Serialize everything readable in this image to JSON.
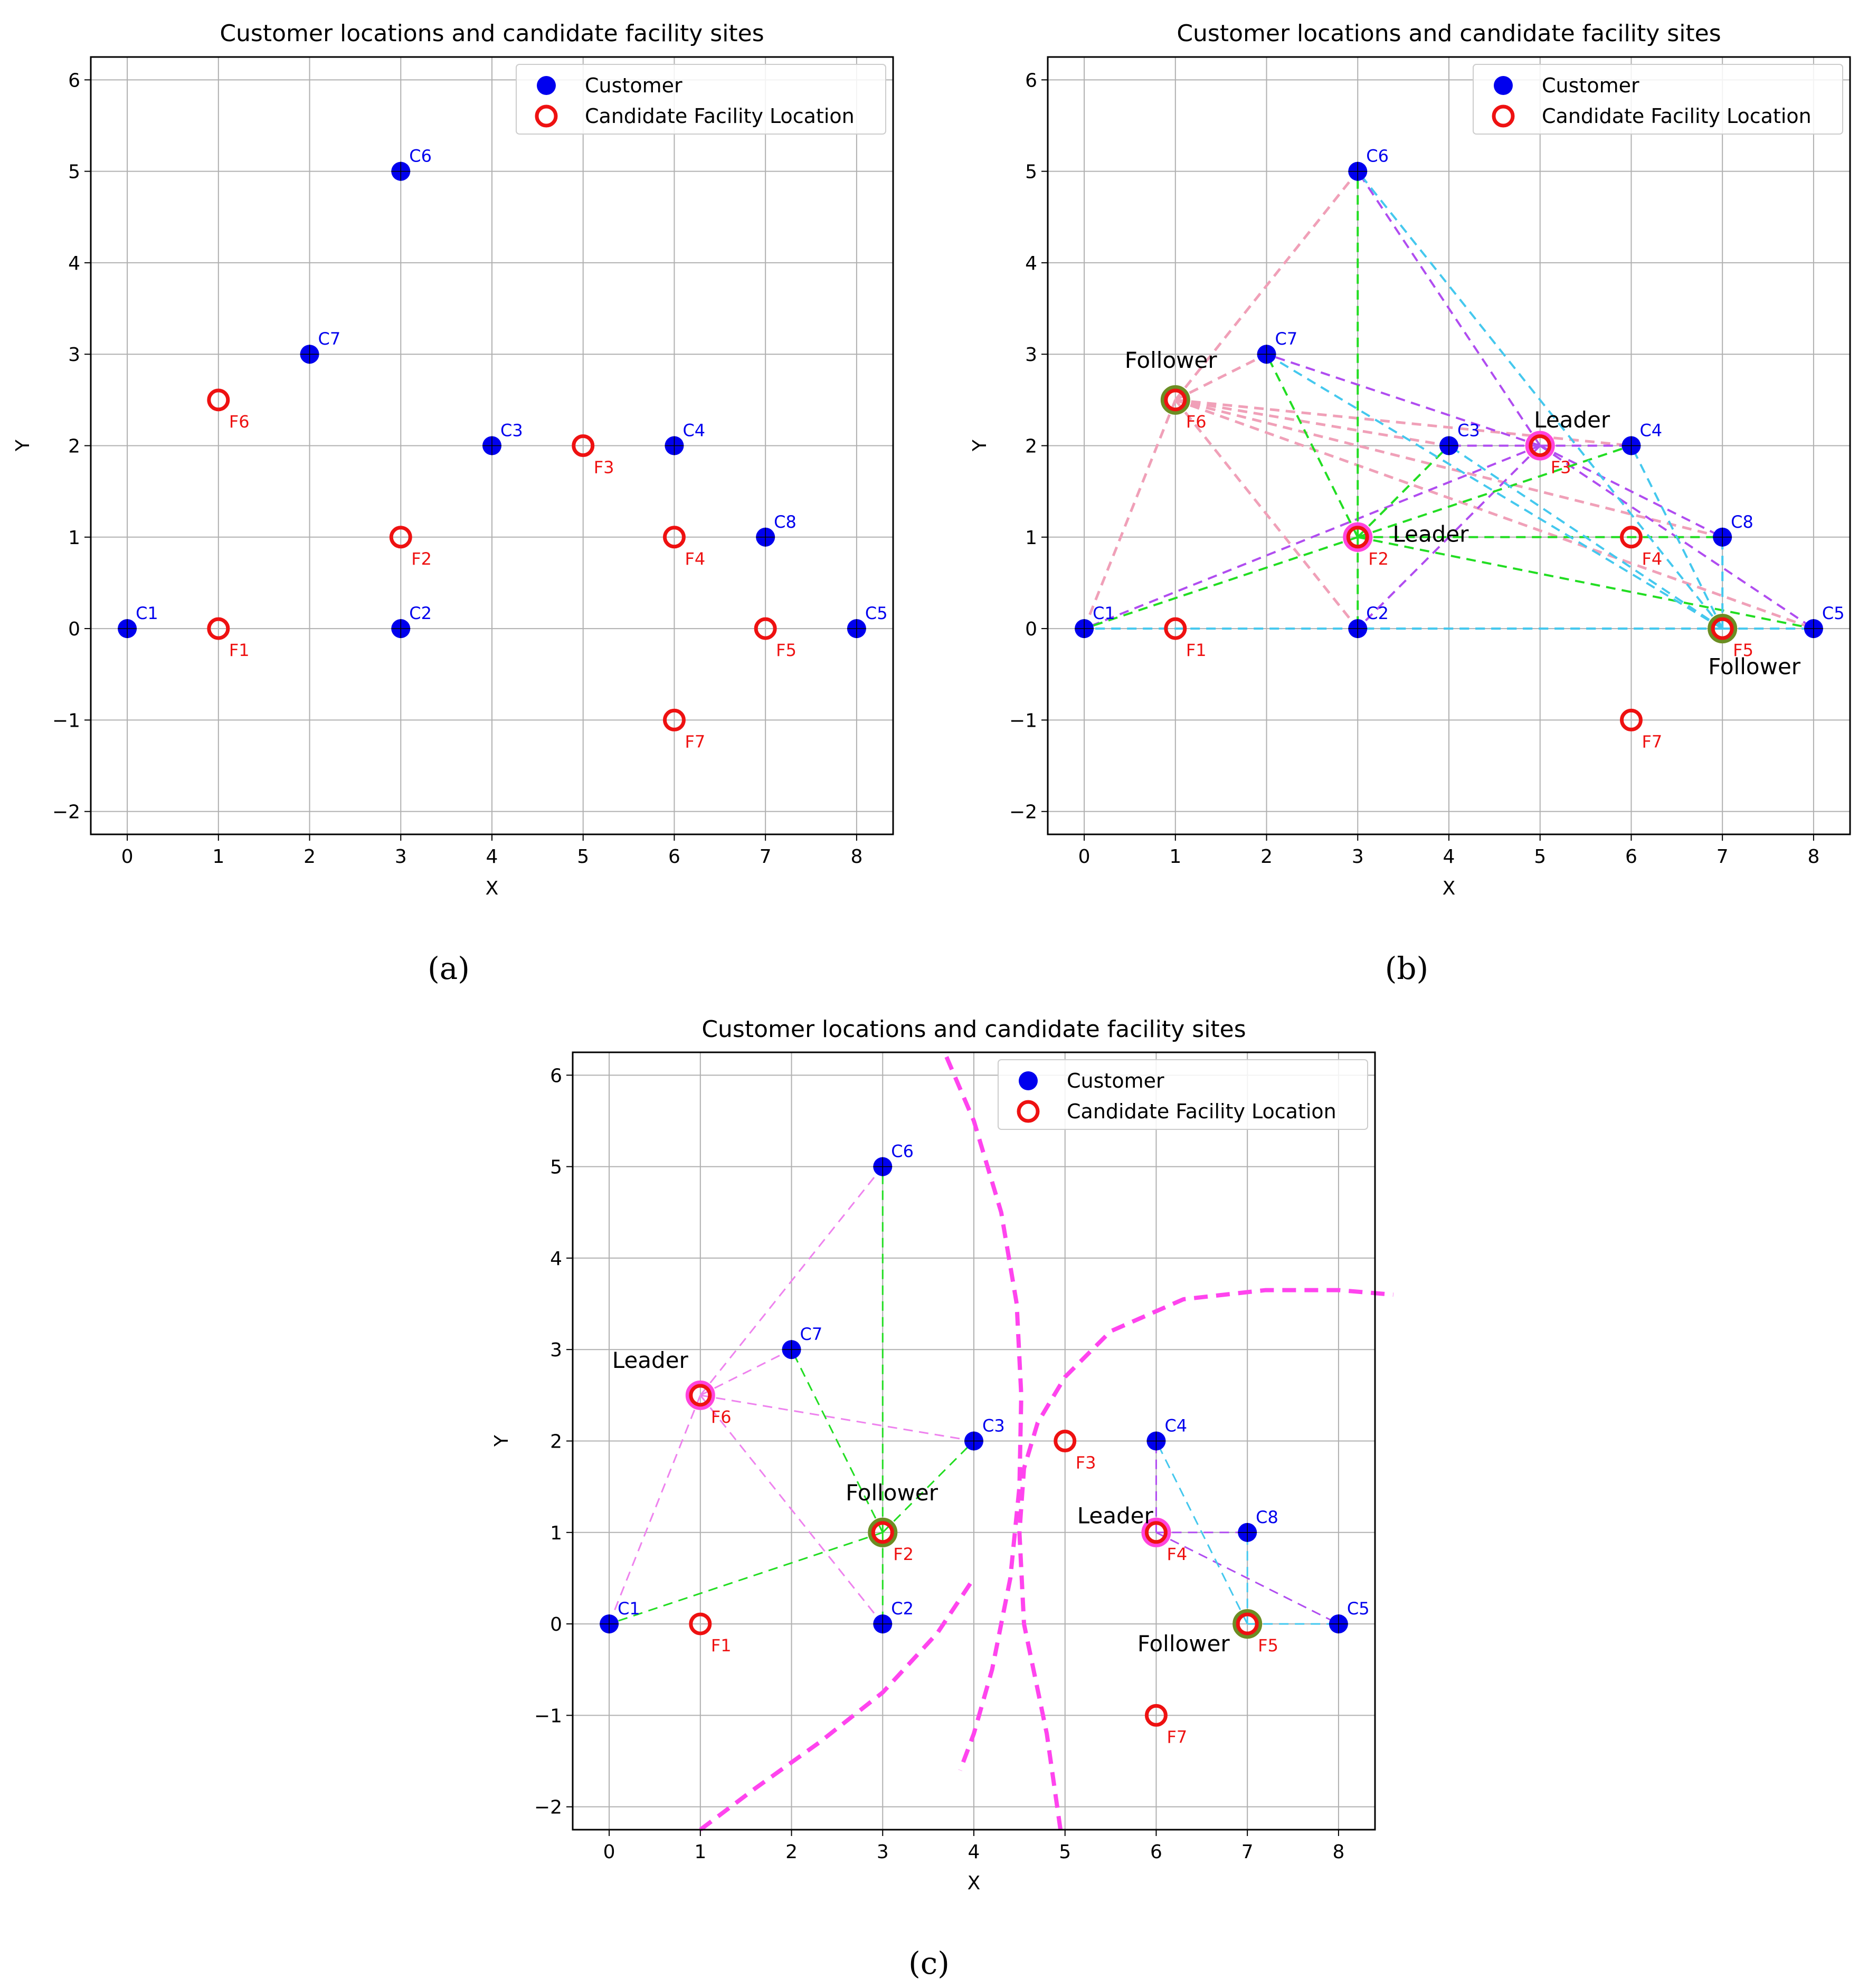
{
  "chart_data": [
    {
      "panel": "a",
      "caption": "(a)",
      "type": "scatter",
      "title": "Customer locations and candidate facility sites",
      "xlabel": "X",
      "ylabel": "Y",
      "xlim": [
        -0.4,
        8.4
      ],
      "ylim": [
        -2.25,
        6.25
      ],
      "xticks": [
        0,
        1,
        2,
        3,
        4,
        5,
        6,
        7,
        8
      ],
      "yticks": [
        -2,
        -1,
        0,
        1,
        2,
        3,
        4,
        5,
        6
      ],
      "grid": true,
      "legend": {
        "position": "top-right",
        "entries": [
          "Customer",
          "Candidate Facility Location"
        ]
      },
      "customers": [
        {
          "id": "C1",
          "x": 0,
          "y": 0
        },
        {
          "id": "C2",
          "x": 3,
          "y": 0
        },
        {
          "id": "C3",
          "x": 4,
          "y": 2
        },
        {
          "id": "C4",
          "x": 6,
          "y": 2
        },
        {
          "id": "C5",
          "x": 8,
          "y": 0
        },
        {
          "id": "C6",
          "x": 3,
          "y": 5
        },
        {
          "id": "C7",
          "x": 2,
          "y": 3
        },
        {
          "id": "C8",
          "x": 7,
          "y": 1
        }
      ],
      "facilities": [
        {
          "id": "F1",
          "x": 1,
          "y": 0
        },
        {
          "id": "F2",
          "x": 3,
          "y": 1
        },
        {
          "id": "F3",
          "x": 5,
          "y": 2
        },
        {
          "id": "F4",
          "x": 6,
          "y": 1
        },
        {
          "id": "F5",
          "x": 7,
          "y": 0
        },
        {
          "id": "F6",
          "x": 1,
          "y": 2.5
        },
        {
          "id": "F7",
          "x": 6,
          "y": -1
        }
      ],
      "connections": [],
      "roles": [],
      "boundaries": []
    },
    {
      "panel": "b",
      "caption": "(b)",
      "type": "scatter",
      "title": "Customer locations and candidate facility sites",
      "xlabel": "X",
      "ylabel": "Y",
      "xlim": [
        -0.4,
        8.4
      ],
      "ylim": [
        -2.25,
        6.25
      ],
      "xticks": [
        0,
        1,
        2,
        3,
        4,
        5,
        6,
        7,
        8
      ],
      "yticks": [
        -2,
        -1,
        0,
        1,
        2,
        3,
        4,
        5,
        6
      ],
      "grid": true,
      "legend": {
        "position": "top-right",
        "entries": [
          "Customer",
          "Candidate Facility Location"
        ]
      },
      "customers": [
        {
          "id": "C1",
          "x": 0,
          "y": 0
        },
        {
          "id": "C2",
          "x": 3,
          "y": 0
        },
        {
          "id": "C3",
          "x": 4,
          "y": 2
        },
        {
          "id": "C4",
          "x": 6,
          "y": 2
        },
        {
          "id": "C5",
          "x": 8,
          "y": 0
        },
        {
          "id": "C6",
          "x": 3,
          "y": 5
        },
        {
          "id": "C7",
          "x": 2,
          "y": 3
        },
        {
          "id": "C8",
          "x": 7,
          "y": 1
        }
      ],
      "facilities": [
        {
          "id": "F1",
          "x": 1,
          "y": 0
        },
        {
          "id": "F2",
          "x": 3,
          "y": 1
        },
        {
          "id": "F3",
          "x": 5,
          "y": 2
        },
        {
          "id": "F4",
          "x": 6,
          "y": 1
        },
        {
          "id": "F5",
          "x": 7,
          "y": 0
        },
        {
          "id": "F6",
          "x": 1,
          "y": 2.5
        },
        {
          "id": "F7",
          "x": 6,
          "y": -1
        }
      ],
      "connections": [
        {
          "color": "#f0a0b8",
          "from": [
            1,
            2.5
          ],
          "to": [
            3,
            5
          ],
          "width": 5
        },
        {
          "color": "#f0a0b8",
          "from": [
            1,
            2.5
          ],
          "to": [
            0,
            0
          ],
          "width": 5
        },
        {
          "color": "#f0a0b8",
          "from": [
            1,
            2.5
          ],
          "to": [
            2,
            3
          ],
          "width": 5
        },
        {
          "color": "#f0a0b8",
          "from": [
            1,
            2.5
          ],
          "to": [
            4,
            2
          ],
          "width": 5
        },
        {
          "color": "#f0a0b8",
          "from": [
            1,
            2.5
          ],
          "to": [
            6,
            2
          ],
          "width": 5
        },
        {
          "color": "#f0a0b8",
          "from": [
            1,
            2.5
          ],
          "to": [
            3,
            0
          ],
          "width": 5
        },
        {
          "color": "#f0a0b8",
          "from": [
            1,
            2.5
          ],
          "to": [
            7,
            1
          ],
          "width": 5
        },
        {
          "color": "#f0a0b8",
          "from": [
            1,
            2.5
          ],
          "to": [
            8,
            0
          ],
          "width": 5
        },
        {
          "color": "#b04cf0",
          "from": [
            5,
            2
          ],
          "to": [
            3,
            5
          ],
          "width": 4
        },
        {
          "color": "#b04cf0",
          "from": [
            5,
            2
          ],
          "to": [
            2,
            3
          ],
          "width": 4
        },
        {
          "color": "#b04cf0",
          "from": [
            5,
            2
          ],
          "to": [
            4,
            2
          ],
          "width": 4
        },
        {
          "color": "#b04cf0",
          "from": [
            5,
            2
          ],
          "to": [
            6,
            2
          ],
          "width": 4
        },
        {
          "color": "#b04cf0",
          "from": [
            5,
            2
          ],
          "to": [
            0,
            0
          ],
          "width": 4
        },
        {
          "color": "#b04cf0",
          "from": [
            5,
            2
          ],
          "to": [
            3,
            0
          ],
          "width": 4
        },
        {
          "color": "#b04cf0",
          "from": [
            5,
            2
          ],
          "to": [
            7,
            1
          ],
          "width": 4
        },
        {
          "color": "#b04cf0",
          "from": [
            5,
            2
          ],
          "to": [
            8,
            0
          ],
          "width": 4
        },
        {
          "color": "#22dd22",
          "from": [
            3,
            1
          ],
          "to": [
            3,
            5
          ],
          "width": 4
        },
        {
          "color": "#22dd22",
          "from": [
            3,
            1
          ],
          "to": [
            2,
            3
          ],
          "width": 4
        },
        {
          "color": "#22dd22",
          "from": [
            3,
            1
          ],
          "to": [
            4,
            2
          ],
          "width": 4
        },
        {
          "color": "#22dd22",
          "from": [
            3,
            1
          ],
          "to": [
            6,
            2
          ],
          "width": 4
        },
        {
          "color": "#22dd22",
          "from": [
            3,
            1
          ],
          "to": [
            0,
            0
          ],
          "width": 4
        },
        {
          "color": "#22dd22",
          "from": [
            3,
            1
          ],
          "to": [
            3,
            0
          ],
          "width": 4
        },
        {
          "color": "#22dd22",
          "from": [
            3,
            1
          ],
          "to": [
            7,
            1
          ],
          "width": 4
        },
        {
          "color": "#22dd22",
          "from": [
            3,
            1
          ],
          "to": [
            8,
            0
          ],
          "width": 4
        },
        {
          "color": "#44c8ee",
          "from": [
            7,
            0
          ],
          "to": [
            3,
            5
          ],
          "width": 4
        },
        {
          "color": "#44c8ee",
          "from": [
            7,
            0
          ],
          "to": [
            2,
            3
          ],
          "width": 4
        },
        {
          "color": "#44c8ee",
          "from": [
            7,
            0
          ],
          "to": [
            4,
            2
          ],
          "width": 4
        },
        {
          "color": "#44c8ee",
          "from": [
            7,
            0
          ],
          "to": [
            6,
            2
          ],
          "width": 4
        },
        {
          "color": "#44c8ee",
          "from": [
            7,
            0
          ],
          "to": [
            0,
            0
          ],
          "width": 4
        },
        {
          "color": "#44c8ee",
          "from": [
            7,
            0
          ],
          "to": [
            3,
            0
          ],
          "width": 4
        },
        {
          "color": "#44c8ee",
          "from": [
            7,
            0
          ],
          "to": [
            7,
            1
          ],
          "width": 4
        },
        {
          "color": "#44c8ee",
          "from": [
            7,
            0
          ],
          "to": [
            8,
            0
          ],
          "width": 4
        }
      ],
      "roles": [
        {
          "text": "Follower",
          "x": 0.95,
          "y": 2.85,
          "at": [
            1,
            2.5
          ],
          "ring": "#6b8e23"
        },
        {
          "text": "Leader",
          "x": 5.35,
          "y": 2.2,
          "at": [
            5,
            2
          ],
          "ring": "#ff44dd"
        },
        {
          "text": "Leader",
          "x": 3.8,
          "y": 0.95,
          "at": [
            3,
            1
          ],
          "ring": "#ff44dd"
        },
        {
          "text": "Follower",
          "x": 7.35,
          "y": -0.5,
          "at": [
            7,
            0
          ],
          "ring": "#6b8e23"
        }
      ],
      "boundaries": []
    },
    {
      "panel": "c",
      "caption": "(c)",
      "type": "scatter",
      "title": "Customer locations and candidate facility sites",
      "xlabel": "X",
      "ylabel": "Y",
      "xlim": [
        -0.4,
        8.4
      ],
      "ylim": [
        -2.25,
        6.25
      ],
      "xticks": [
        0,
        1,
        2,
        3,
        4,
        5,
        6,
        7,
        8
      ],
      "yticks": [
        -2,
        -1,
        0,
        1,
        2,
        3,
        4,
        5,
        6
      ],
      "grid": true,
      "legend": {
        "position": "top-right",
        "entries": [
          "Customer",
          "Candidate Facility Location"
        ]
      },
      "customers": [
        {
          "id": "C1",
          "x": 0,
          "y": 0
        },
        {
          "id": "C2",
          "x": 3,
          "y": 0
        },
        {
          "id": "C3",
          "x": 4,
          "y": 2
        },
        {
          "id": "C4",
          "x": 6,
          "y": 2
        },
        {
          "id": "C5",
          "x": 8,
          "y": 0
        },
        {
          "id": "C6",
          "x": 3,
          "y": 5
        },
        {
          "id": "C7",
          "x": 2,
          "y": 3
        },
        {
          "id": "C8",
          "x": 7,
          "y": 1
        }
      ],
      "facilities": [
        {
          "id": "F1",
          "x": 1,
          "y": 0
        },
        {
          "id": "F2",
          "x": 3,
          "y": 1
        },
        {
          "id": "F3",
          "x": 5,
          "y": 2
        },
        {
          "id": "F4",
          "x": 6,
          "y": 1
        },
        {
          "id": "F5",
          "x": 7,
          "y": 0
        },
        {
          "id": "F6",
          "x": 1,
          "y": 2.5
        },
        {
          "id": "F7",
          "x": 6,
          "y": -1
        }
      ],
      "connections": [
        {
          "color": "#ee82ee",
          "from": [
            1,
            2.5
          ],
          "to": [
            3,
            5
          ],
          "width": 3
        },
        {
          "color": "#ee82ee",
          "from": [
            1,
            2.5
          ],
          "to": [
            2,
            3
          ],
          "width": 3
        },
        {
          "color": "#ee82ee",
          "from": [
            1,
            2.5
          ],
          "to": [
            4,
            2
          ],
          "width": 3
        },
        {
          "color": "#ee82ee",
          "from": [
            1,
            2.5
          ],
          "to": [
            0,
            0
          ],
          "width": 3
        },
        {
          "color": "#ee82ee",
          "from": [
            1,
            2.5
          ],
          "to": [
            3,
            0
          ],
          "width": 3
        },
        {
          "color": "#22dd22",
          "from": [
            3,
            1
          ],
          "to": [
            3,
            5
          ],
          "width": 3
        },
        {
          "color": "#22dd22",
          "from": [
            3,
            1
          ],
          "to": [
            2,
            3
          ],
          "width": 3
        },
        {
          "color": "#22dd22",
          "from": [
            3,
            1
          ],
          "to": [
            4,
            2
          ],
          "width": 3
        },
        {
          "color": "#22dd22",
          "from": [
            3,
            1
          ],
          "to": [
            0,
            0
          ],
          "width": 3
        },
        {
          "color": "#22dd22",
          "from": [
            3,
            1
          ],
          "to": [
            3,
            0
          ],
          "width": 3
        },
        {
          "color": "#b04cf0",
          "from": [
            6,
            1
          ],
          "to": [
            6,
            2
          ],
          "width": 3
        },
        {
          "color": "#b04cf0",
          "from": [
            6,
            1
          ],
          "to": [
            7,
            1
          ],
          "width": 3
        },
        {
          "color": "#b04cf0",
          "from": [
            6,
            1
          ],
          "to": [
            8,
            0
          ],
          "width": 3
        },
        {
          "color": "#44c8ee",
          "from": [
            7,
            0
          ],
          "to": [
            6,
            2
          ],
          "width": 3
        },
        {
          "color": "#44c8ee",
          "from": [
            7,
            0
          ],
          "to": [
            7,
            1
          ],
          "width": 3
        },
        {
          "color": "#44c8ee",
          "from": [
            7,
            0
          ],
          "to": [
            8,
            0
          ],
          "width": 3
        }
      ],
      "roles": [
        {
          "text": "Leader",
          "x": 0.45,
          "y": 2.8,
          "at": [
            1,
            2.5
          ],
          "ring": "#ff44dd"
        },
        {
          "text": "Follower",
          "x": 3.1,
          "y": 1.35,
          "at": [
            3,
            1
          ],
          "ring": "#6b8e23"
        },
        {
          "text": "Leader",
          "x": 5.55,
          "y": 1.1,
          "at": [
            6,
            1
          ],
          "ring": "#ff44dd"
        },
        {
          "text": "Follower",
          "x": 6.3,
          "y": -0.3,
          "at": [
            7,
            0
          ],
          "ring": "#6b8e23"
        }
      ],
      "boundaries": [
        {
          "color": "#ff44ee",
          "points": [
            [
              3.7,
              6.2
            ],
            [
              4.0,
              5.5
            ],
            [
              4.3,
              4.5
            ],
            [
              4.47,
              3.5
            ],
            [
              4.52,
              2.5
            ],
            [
              4.5,
              1.5
            ],
            [
              4.4,
              0.5
            ],
            [
              4.2,
              -0.5
            ],
            [
              4.0,
              -1.2
            ],
            [
              3.85,
              -1.6
            ]
          ]
        },
        {
          "color": "#ff44ee",
          "points": [
            [
              4.95,
              -2.25
            ],
            [
              4.8,
              -1.2
            ],
            [
              4.55,
              0.0
            ],
            [
              4.5,
              1.0
            ],
            [
              4.55,
              1.7
            ],
            [
              4.7,
              2.2
            ],
            [
              5.0,
              2.7
            ],
            [
              5.5,
              3.2
            ],
            [
              6.3,
              3.55
            ],
            [
              7.2,
              3.65
            ],
            [
              8.0,
              3.65
            ],
            [
              8.6,
              3.6
            ]
          ]
        },
        {
          "color": "#ff44ee",
          "points": [
            [
              1.0,
              -2.25
            ],
            [
              1.6,
              -1.8
            ],
            [
              2.3,
              -1.3
            ],
            [
              3.0,
              -0.75
            ],
            [
              3.6,
              -0.1
            ],
            [
              4.0,
              0.5
            ]
          ]
        }
      ]
    }
  ],
  "colors": {
    "customer": "#0000ee",
    "facility": "#ee1111",
    "customer_label": "#0000ee",
    "facility_label": "#ee1111",
    "grid": "#b0b0b0"
  }
}
